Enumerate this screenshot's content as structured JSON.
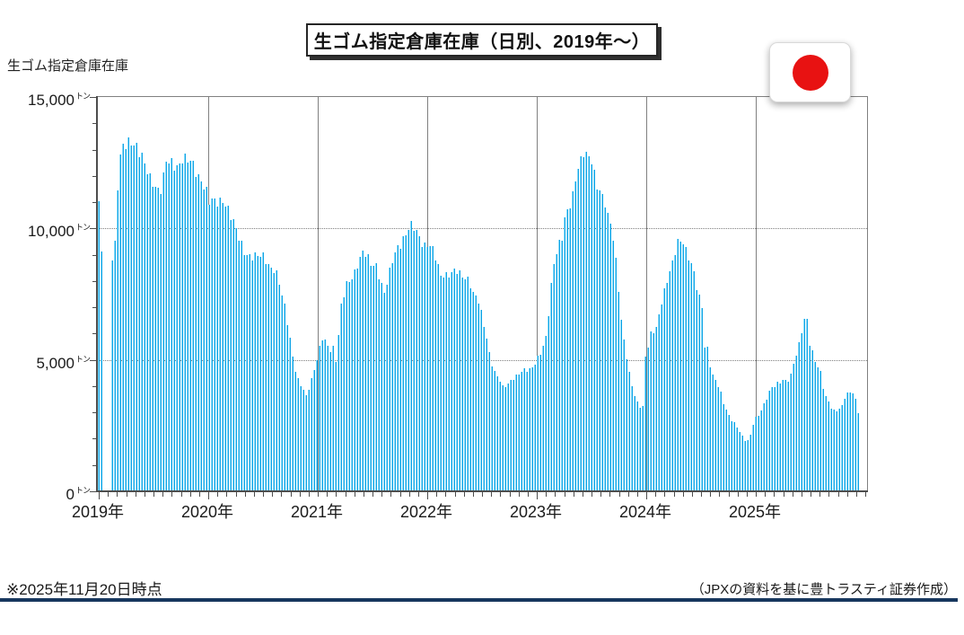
{
  "header": {
    "title": "生ゴム指定倉庫在庫（日別、2019年～）",
    "axis_label": "生ゴム指定倉庫在庫"
  },
  "footer": {
    "note_left": "※2025年11月20日時点",
    "note_right": "（JPXの資料を基に豊トラスティ証券作成）"
  },
  "icons": {
    "japan_flag": "japan-flag-icon"
  },
  "colors": {
    "bar_main": "#0fa3e6",
    "bar_highlight": "#8adcf8",
    "gridline": "#808080",
    "axis": "#4d4d4d",
    "flag_red": "#e81212",
    "navy_rule": "#17375e"
  },
  "chart_data": {
    "type": "bar",
    "title": "生ゴム指定倉庫在庫（日別、2019年～）",
    "ylabel": "生ゴム指定倉庫在庫",
    "unit": "トン",
    "ylim": [
      0,
      15000
    ],
    "yticks": [
      {
        "value": 0,
        "label": "0"
      },
      {
        "value": 5000,
        "label": "5,000"
      },
      {
        "value": 10000,
        "label": "10,000"
      },
      {
        "value": 15000,
        "label": "15,000"
      }
    ],
    "y_minor_step": 1000,
    "x_years": [
      {
        "label": "2019年",
        "t": 0
      },
      {
        "label": "2020年",
        "t": 1
      },
      {
        "label": "2021年",
        "t": 2
      },
      {
        "label": "2022年",
        "t": 3
      },
      {
        "label": "2023年",
        "t": 4
      },
      {
        "label": "2024年",
        "t": 5
      },
      {
        "label": "2025年",
        "t": 6
      }
    ],
    "x_minor_per_year": 12,
    "x_end": 6.93,
    "grid": {
      "horizontal": "dotted",
      "vertical": "solid"
    },
    "gaps": [
      [
        0.03,
        0.095
      ]
    ],
    "series": [
      {
        "name": "生ゴム指定倉庫在庫（トン）",
        "keypoints": [
          [
            0.0,
            11050
          ],
          [
            0.02,
            8500
          ],
          [
            0.1,
            8600
          ],
          [
            0.14,
            9500
          ],
          [
            0.17,
            12250
          ],
          [
            0.2,
            13050
          ],
          [
            0.25,
            13100
          ],
          [
            0.3,
            13300
          ],
          [
            0.34,
            13200
          ],
          [
            0.38,
            12850
          ],
          [
            0.42,
            12250
          ],
          [
            0.46,
            11800
          ],
          [
            0.52,
            11550
          ],
          [
            0.57,
            11600
          ],
          [
            0.6,
            12600
          ],
          [
            0.64,
            12400
          ],
          [
            0.7,
            12300
          ],
          [
            0.76,
            12800
          ],
          [
            0.8,
            12600
          ],
          [
            0.84,
            12450
          ],
          [
            0.89,
            11950
          ],
          [
            0.93,
            11900
          ],
          [
            0.97,
            11550
          ],
          [
            1.0,
            11050
          ],
          [
            1.07,
            10900
          ],
          [
            1.13,
            11150
          ],
          [
            1.17,
            10800
          ],
          [
            1.22,
            10200
          ],
          [
            1.27,
            9600
          ],
          [
            1.32,
            9150
          ],
          [
            1.38,
            8950
          ],
          [
            1.44,
            8900
          ],
          [
            1.5,
            8950
          ],
          [
            1.55,
            8600
          ],
          [
            1.59,
            8450
          ],
          [
            1.62,
            8200
          ],
          [
            1.66,
            7450
          ],
          [
            1.69,
            7000
          ],
          [
            1.73,
            6050
          ],
          [
            1.75,
            5450
          ],
          [
            1.8,
            4300
          ],
          [
            1.83,
            4050
          ],
          [
            1.85,
            3950
          ],
          [
            1.88,
            3550
          ],
          [
            1.92,
            4050
          ],
          [
            1.96,
            4700
          ],
          [
            2.0,
            5300
          ],
          [
            2.03,
            5800
          ],
          [
            2.07,
            5600
          ],
          [
            2.1,
            5350
          ],
          [
            2.13,
            5500
          ],
          [
            2.16,
            4950
          ],
          [
            2.2,
            6950
          ],
          [
            2.25,
            7800
          ],
          [
            2.29,
            8000
          ],
          [
            2.33,
            8400
          ],
          [
            2.37,
            8900
          ],
          [
            2.4,
            9100
          ],
          [
            2.44,
            8900
          ],
          [
            2.48,
            8550
          ],
          [
            2.52,
            8700
          ],
          [
            2.57,
            8000
          ],
          [
            2.59,
            7450
          ],
          [
            2.63,
            8000
          ],
          [
            2.67,
            8700
          ],
          [
            2.71,
            9250
          ],
          [
            2.75,
            9500
          ],
          [
            2.8,
            9850
          ],
          [
            2.84,
            10050
          ],
          [
            2.88,
            9950
          ],
          [
            2.92,
            9700
          ],
          [
            2.96,
            9400
          ],
          [
            3.0,
            9400
          ],
          [
            3.04,
            9150
          ],
          [
            3.08,
            8650
          ],
          [
            3.11,
            8250
          ],
          [
            3.16,
            8300
          ],
          [
            3.2,
            8250
          ],
          [
            3.25,
            8350
          ],
          [
            3.29,
            8250
          ],
          [
            3.33,
            8200
          ],
          [
            3.37,
            8100
          ],
          [
            3.41,
            7500
          ],
          [
            3.45,
            7300
          ],
          [
            3.48,
            6800
          ],
          [
            3.52,
            6150
          ],
          [
            3.56,
            5250
          ],
          [
            3.6,
            4550
          ],
          [
            3.64,
            4300
          ],
          [
            3.68,
            3950
          ],
          [
            3.72,
            4050
          ],
          [
            3.76,
            4300
          ],
          [
            3.81,
            4400
          ],
          [
            3.86,
            4550
          ],
          [
            3.92,
            4650
          ],
          [
            3.97,
            4850
          ],
          [
            4.0,
            5100
          ],
          [
            4.03,
            5250
          ],
          [
            4.07,
            5700
          ],
          [
            4.09,
            6300
          ],
          [
            4.11,
            7400
          ],
          [
            4.15,
            8850
          ],
          [
            4.19,
            9400
          ],
          [
            4.22,
            9600
          ],
          [
            4.25,
            10350
          ],
          [
            4.29,
            10800
          ],
          [
            4.32,
            11300
          ],
          [
            4.35,
            12200
          ],
          [
            4.39,
            12600
          ],
          [
            4.42,
            12900
          ],
          [
            4.45,
            12550
          ],
          [
            4.48,
            12700
          ],
          [
            4.5,
            12350
          ],
          [
            4.53,
            11850
          ],
          [
            4.57,
            11450
          ],
          [
            4.61,
            11100
          ],
          [
            4.63,
            10400
          ],
          [
            4.66,
            10250
          ],
          [
            4.7,
            9250
          ],
          [
            4.73,
            8200
          ],
          [
            4.76,
            6600
          ],
          [
            4.8,
            5400
          ],
          [
            4.83,
            4550
          ],
          [
            4.86,
            4000
          ],
          [
            4.89,
            3500
          ],
          [
            4.92,
            3340
          ],
          [
            4.94,
            3210
          ],
          [
            4.96,
            3250
          ],
          [
            4.98,
            5170
          ],
          [
            5.0,
            5250
          ],
          [
            5.02,
            5850
          ],
          [
            5.05,
            6100
          ],
          [
            5.07,
            5950
          ],
          [
            5.1,
            6500
          ],
          [
            5.12,
            7050
          ],
          [
            5.16,
            7750
          ],
          [
            5.2,
            8350
          ],
          [
            5.24,
            8700
          ],
          [
            5.27,
            9400
          ],
          [
            5.31,
            9520
          ],
          [
            5.33,
            9550
          ],
          [
            5.36,
            9150
          ],
          [
            5.39,
            8850
          ],
          [
            5.42,
            8400
          ],
          [
            5.46,
            7500
          ],
          [
            5.5,
            7000
          ],
          [
            5.52,
            5550
          ],
          [
            5.56,
            5450
          ],
          [
            5.58,
            4550
          ],
          [
            5.62,
            4250
          ],
          [
            5.66,
            3850
          ],
          [
            5.7,
            3300
          ],
          [
            5.75,
            2850
          ],
          [
            5.79,
            2650
          ],
          [
            5.83,
            2350
          ],
          [
            5.87,
            2050
          ],
          [
            5.9,
            1900
          ],
          [
            5.93,
            1950
          ],
          [
            5.97,
            2650
          ],
          [
            6.0,
            2850
          ],
          [
            6.03,
            2950
          ],
          [
            6.07,
            3300
          ],
          [
            6.1,
            3650
          ],
          [
            6.13,
            3950
          ],
          [
            6.16,
            4050
          ],
          [
            6.2,
            4150
          ],
          [
            6.24,
            4200
          ],
          [
            6.28,
            4150
          ],
          [
            6.32,
            4500
          ],
          [
            6.34,
            5000
          ],
          [
            6.38,
            5500
          ],
          [
            6.4,
            5950
          ],
          [
            6.44,
            6550
          ],
          [
            6.46,
            6450
          ],
          [
            6.48,
            5600
          ],
          [
            6.51,
            5250
          ],
          [
            6.54,
            4900
          ],
          [
            6.58,
            4600
          ],
          [
            6.62,
            3650
          ],
          [
            6.65,
            3450
          ],
          [
            6.69,
            3050
          ],
          [
            6.73,
            3100
          ],
          [
            6.77,
            3200
          ],
          [
            6.81,
            3650
          ],
          [
            6.85,
            3750
          ],
          [
            6.88,
            3700
          ],
          [
            6.9,
            3500
          ],
          [
            6.93,
            2950
          ]
        ]
      }
    ]
  }
}
